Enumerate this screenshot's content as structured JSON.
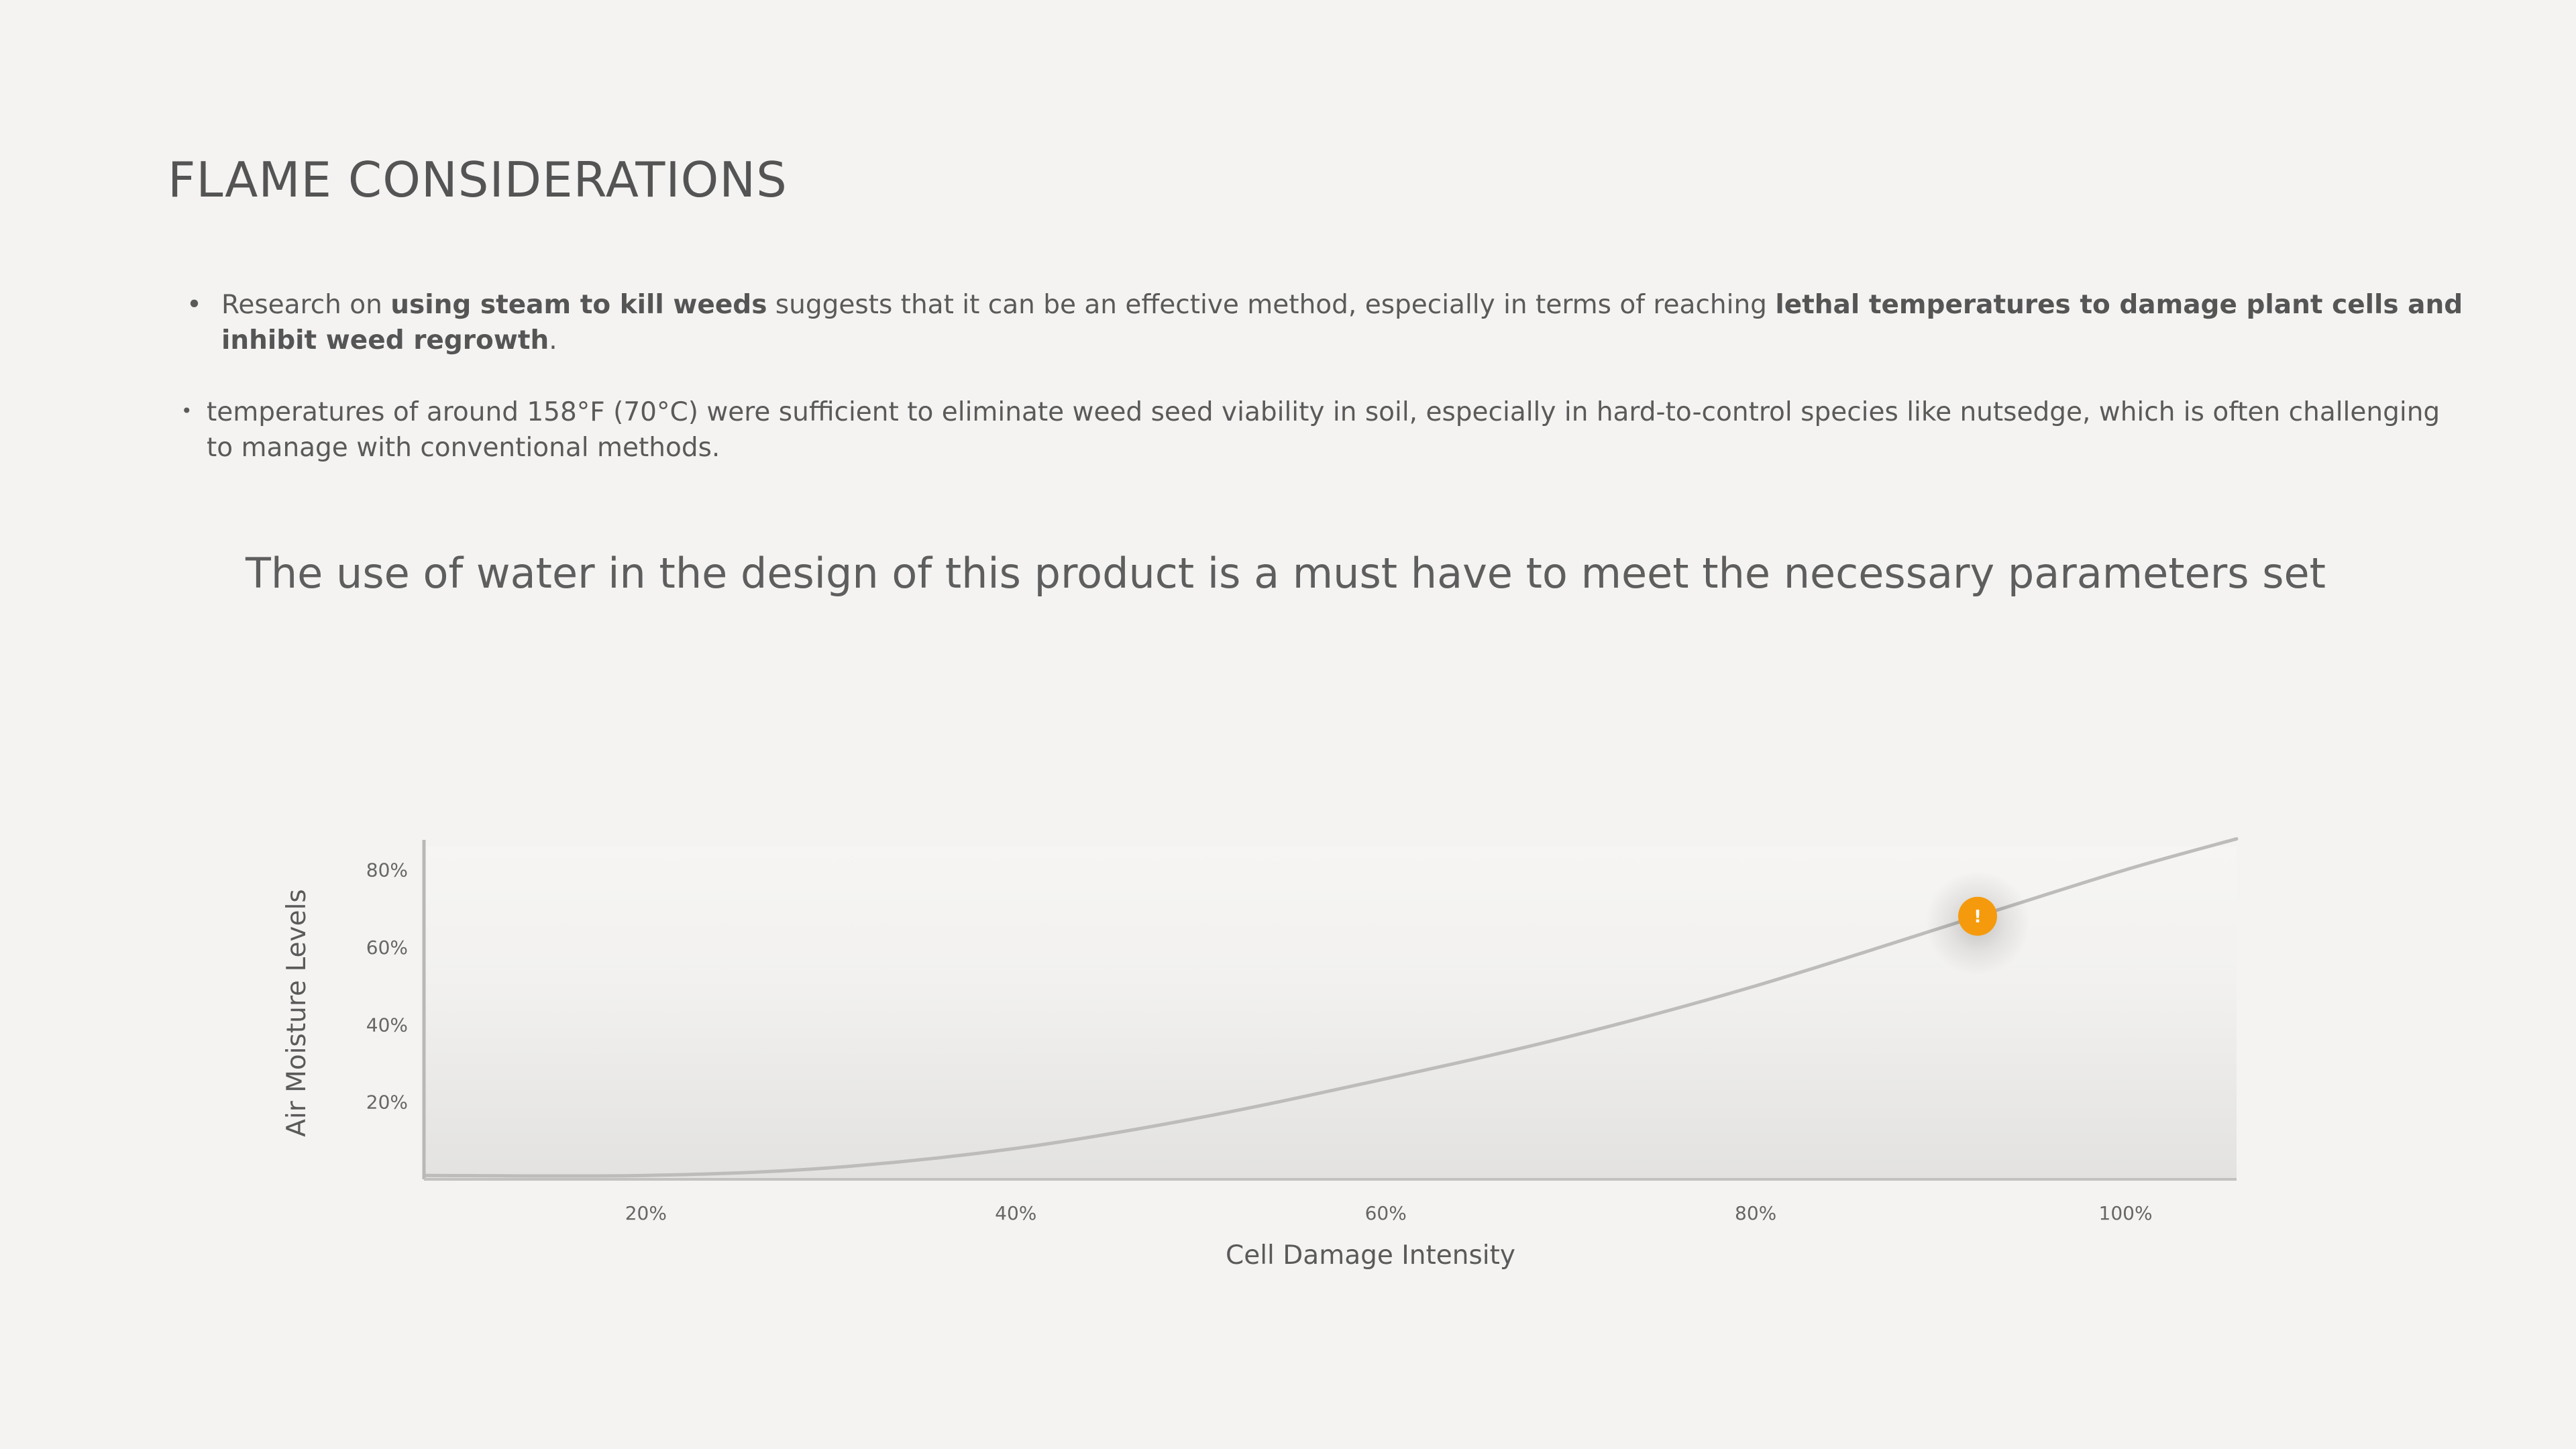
{
  "slide": {
    "title": "FLAME CONSIDERATIONS",
    "bullets": [
      {
        "marker": "•",
        "parts": [
          {
            "text": "Research on ",
            "bold": false
          },
          {
            "text": "using steam to kill weeds",
            "bold": true
          },
          {
            "text": " suggests that it can be an effective method, especially in terms of reaching ",
            "bold": false
          },
          {
            "text": "lethal temperatures to damage plant cells and inhibit weed regrowth",
            "bold": true
          },
          {
            "text": ".",
            "bold": false
          }
        ]
      },
      {
        "marker": "•",
        "parts": [
          {
            "text": "temperatures of around 158°F (70°C) were sufficient to eliminate weed seed viability in soil, especially in hard-to-control species like nutsedge, which is often challenging to manage with conventional methods.",
            "bold": false
          }
        ]
      }
    ],
    "callout": "The use of water in the design of this product is a must have to meet the necessary parameters set"
  },
  "chart_data": {
    "type": "area",
    "xlabel": "Cell Damage Intensity",
    "ylabel": "Air Moisture Levels",
    "x_ticks": [
      {
        "value": 20,
        "label": "20%"
      },
      {
        "value": 40,
        "label": "40%"
      },
      {
        "value": 60,
        "label": "60%"
      },
      {
        "value": 80,
        "label": "80%"
      },
      {
        "value": 100,
        "label": "100%"
      }
    ],
    "y_ticks": [
      {
        "value": 20,
        "label": "20%"
      },
      {
        "value": 40,
        "label": "40%"
      },
      {
        "value": 60,
        "label": "60%"
      },
      {
        "value": 80,
        "label": "80%"
      }
    ],
    "xlim": [
      8,
      106
    ],
    "ylim": [
      0,
      86
    ],
    "series": [
      {
        "x": [
          8,
          20,
          30,
          40,
          50,
          60,
          70,
          80,
          92,
          100,
          106
        ],
        "y": [
          1,
          1,
          3,
          8,
          16,
          26,
          37,
          50,
          68,
          80,
          88
        ]
      }
    ],
    "highlight": {
      "x": 92,
      "y": 68,
      "glyph": "!",
      "color": "#f59a0c"
    },
    "line_color": "#bdbcba",
    "grid": false
  }
}
